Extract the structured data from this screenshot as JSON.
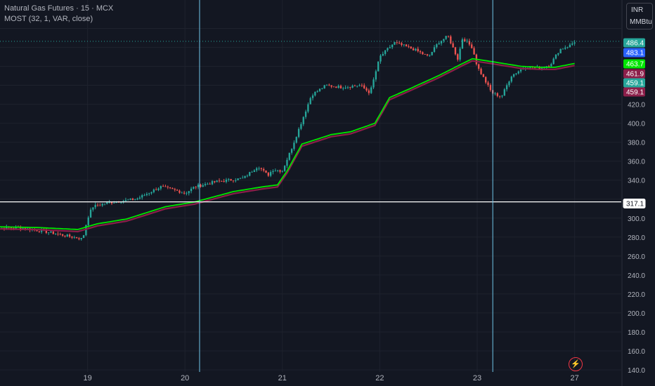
{
  "legend": {
    "title": "Natural Gas Futures · 15 · MCX",
    "indicator": "MOST (32, 1, VAR, close)"
  },
  "unit": {
    "currency": "INR",
    "measure": "MMBtu"
  },
  "colors": {
    "up": "#26a69a",
    "down": "#ef5350",
    "ma": "#00e600",
    "band": "#8c1f4a",
    "bg": "#131722",
    "grid": "#1e222d",
    "crosshair_h": "#ffffff",
    "crosshair_v": "#6fc5e8"
  },
  "chart_data": {
    "type": "candlestick",
    "y_axis": {
      "range": [
        140,
        500
      ],
      "ticks": [
        140,
        160,
        180,
        200,
        220,
        240,
        260,
        280,
        300,
        320,
        340,
        360,
        380,
        400,
        420,
        440,
        460,
        480,
        500
      ],
      "tick_labels": [
        "140.0",
        "160.0",
        "180.0",
        "200.0",
        "220.0",
        "240.0",
        "260.0",
        "280.0",
        "300.0",
        "",
        "340.0",
        "360.0",
        "380.0",
        "400.0",
        "420.0",
        "",
        "",
        "",
        ""
      ]
    },
    "x_axis": {
      "labels": [
        "19",
        "20",
        "21",
        "22",
        "23",
        "27"
      ],
      "label_positions": [
        1,
        2,
        3,
        4,
        5,
        6
      ]
    },
    "price_path": [
      [
        0.0,
        289
      ],
      [
        0.3,
        290
      ],
      [
        0.55,
        286
      ],
      [
        0.75,
        282
      ],
      [
        0.95,
        278
      ],
      [
        1.0,
        300
      ],
      [
        1.05,
        312
      ],
      [
        1.2,
        316
      ],
      [
        1.5,
        320
      ],
      [
        1.75,
        333
      ],
      [
        1.95,
        328
      ],
      [
        2.0,
        326
      ],
      [
        2.1,
        333
      ],
      [
        2.3,
        338
      ],
      [
        2.6,
        342
      ],
      [
        2.75,
        355
      ],
      [
        2.85,
        345
      ],
      [
        2.9,
        351
      ],
      [
        3.0,
        350
      ],
      [
        3.1,
        375
      ],
      [
        3.3,
        430
      ],
      [
        3.45,
        440
      ],
      [
        3.6,
        438
      ],
      [
        3.8,
        440
      ],
      [
        3.9,
        432
      ],
      [
        4.0,
        470
      ],
      [
        4.15,
        485
      ],
      [
        4.35,
        478
      ],
      [
        4.5,
        470
      ],
      [
        4.6,
        485
      ],
      [
        4.7,
        492
      ],
      [
        4.8,
        468
      ],
      [
        4.85,
        490
      ],
      [
        4.95,
        480
      ],
      [
        5.0,
        460
      ],
      [
        5.15,
        432
      ],
      [
        5.25,
        428
      ],
      [
        5.35,
        450
      ],
      [
        5.5,
        460
      ],
      [
        5.65,
        458
      ],
      [
        5.75,
        462
      ],
      [
        5.85,
        478
      ],
      [
        5.95,
        482
      ],
      [
        6.0,
        486
      ]
    ],
    "most_line_path": [
      [
        0.0,
        291
      ],
      [
        0.5,
        290
      ],
      [
        0.9,
        288
      ],
      [
        1.1,
        294
      ],
      [
        1.4,
        299
      ],
      [
        1.8,
        312
      ],
      [
        2.1,
        317
      ],
      [
        2.5,
        328
      ],
      [
        2.8,
        333
      ],
      [
        2.95,
        335
      ],
      [
        3.05,
        350
      ],
      [
        3.2,
        378
      ],
      [
        3.5,
        388
      ],
      [
        3.7,
        391
      ],
      [
        3.95,
        400
      ],
      [
        4.1,
        427
      ],
      [
        4.3,
        436
      ],
      [
        4.6,
        450
      ],
      [
        4.85,
        463
      ],
      [
        4.95,
        468
      ],
      [
        5.15,
        465
      ],
      [
        5.45,
        460
      ],
      [
        5.65,
        459
      ],
      [
        5.8,
        459
      ],
      [
        5.95,
        462
      ],
      [
        6.0,
        463
      ]
    ],
    "series": [
      {
        "name": "MOST (32, 1, VAR, close)",
        "description": "exMOV line"
      },
      {
        "name": "",
        "description": "MOST band"
      }
    ],
    "price_labels": [
      {
        "value": 486.4,
        "text": "486.4",
        "color": "#26a69a"
      },
      {
        "value": 483.1,
        "text": "483.1",
        "color": "#2962ff"
      },
      {
        "value": 463.7,
        "text": "463.7",
        "color": "#00e600"
      },
      {
        "value": 461.9,
        "text": "461.9",
        "color": "#8c1f4a"
      },
      {
        "value": 459.1,
        "text": "459.1",
        "color": "#26a69a"
      },
      {
        "value": 459.1,
        "text": "459.1",
        "color": "#8c1f4a"
      },
      {
        "value": 317.1,
        "text": "317.1",
        "color": "#ffffff"
      }
    ],
    "crosshair": {
      "price": 317.1,
      "x_positions": [
        2.15,
        5.16
      ]
    },
    "last_price_line": 486.4,
    "grid": true
  }
}
